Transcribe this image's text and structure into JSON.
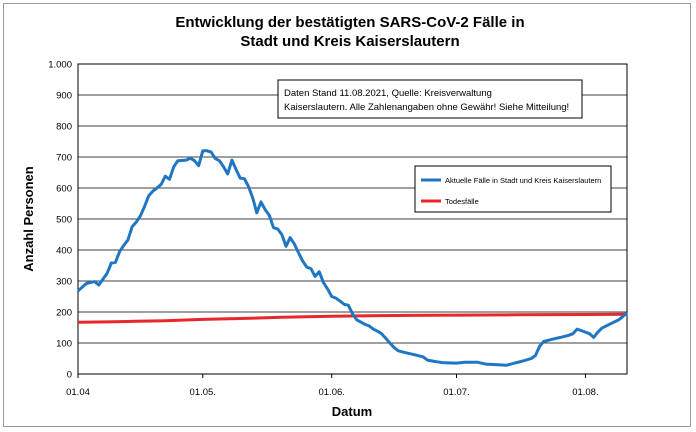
{
  "chart_data": {
    "type": "line",
    "title_lines": [
      "Entwicklung der bestätigten SARS-CoV-2 Fälle in",
      "Stadt und Kreis Kaiserslautern"
    ],
    "xlabel": "Datum",
    "ylabel": "Anzahl Personen",
    "ylim": [
      0,
      1000
    ],
    "yticks": [
      {
        "value": 0,
        "label": "0"
      },
      {
        "value": 100,
        "label": "100"
      },
      {
        "value": 200,
        "label": "200"
      },
      {
        "value": 300,
        "label": "300"
      },
      {
        "value": 400,
        "label": "400"
      },
      {
        "value": 500,
        "label": "500"
      },
      {
        "value": 600,
        "label": "600"
      },
      {
        "value": 700,
        "label": "700"
      },
      {
        "value": 800,
        "label": "800"
      },
      {
        "value": 900,
        "label": "900"
      },
      {
        "value": 1000,
        "label": "1.000"
      }
    ],
    "xlim": [
      "2021-04-01",
      "2021-08-11"
    ],
    "xticks": [
      {
        "date": "2021-04-01",
        "label": "01.04"
      },
      {
        "date": "2021-05-01",
        "label": "01.05."
      },
      {
        "date": "2021-06-01",
        "label": "01.06."
      },
      {
        "date": "2021-07-01",
        "label": "01.07."
      },
      {
        "date": "2021-08-01",
        "label": "01.08."
      }
    ],
    "grid": "horizontal",
    "annotation_lines": [
      "Daten Stand 11.08.2021, Quelle: Kreisverwaltung",
      "Kaiserslautern. Alle Zahlenangaben ohne Gewähr! Siehe Mitteilung!"
    ],
    "legend": {
      "position": "right",
      "entries": [
        {
          "name": "Aktuelle Fälle in Stadt und Kreis Kaiserslautern",
          "color": "#1f77c4"
        },
        {
          "name": "Todesfälle",
          "color": "#e8262b"
        }
      ]
    },
    "series": [
      {
        "name": "Aktuelle Fälle in Stadt und Kreis Kaiserslautern",
        "color": "#1f77c4",
        "points": [
          [
            "2021-04-01",
            268
          ],
          [
            "2021-04-03",
            292
          ],
          [
            "2021-04-05",
            298
          ],
          [
            "2021-04-06",
            287
          ],
          [
            "2021-04-08",
            325
          ],
          [
            "2021-04-09",
            358
          ],
          [
            "2021-04-10",
            360
          ],
          [
            "2021-04-11",
            395
          ],
          [
            "2021-04-12",
            415
          ],
          [
            "2021-04-13",
            432
          ],
          [
            "2021-04-14",
            475
          ],
          [
            "2021-04-15",
            490
          ],
          [
            "2021-04-16",
            510
          ],
          [
            "2021-04-17",
            540
          ],
          [
            "2021-04-18",
            575
          ],
          [
            "2021-04-19",
            590
          ],
          [
            "2021-04-20",
            600
          ],
          [
            "2021-04-21",
            612
          ],
          [
            "2021-04-22",
            638
          ],
          [
            "2021-04-23",
            628
          ],
          [
            "2021-04-24",
            668
          ],
          [
            "2021-04-25",
            688
          ],
          [
            "2021-04-27",
            690
          ],
          [
            "2021-04-28",
            696
          ],
          [
            "2021-04-29",
            688
          ],
          [
            "2021-04-30",
            672
          ],
          [
            "2021-05-01",
            720
          ],
          [
            "2021-05-02",
            720
          ],
          [
            "2021-05-03",
            716
          ],
          [
            "2021-05-04",
            695
          ],
          [
            "2021-05-05",
            688
          ],
          [
            "2021-05-06",
            668
          ],
          [
            "2021-05-07",
            645
          ],
          [
            "2021-05-08",
            690
          ],
          [
            "2021-05-09",
            660
          ],
          [
            "2021-05-10",
            632
          ],
          [
            "2021-05-11",
            630
          ],
          [
            "2021-05-12",
            605
          ],
          [
            "2021-05-13",
            568
          ],
          [
            "2021-05-14",
            520
          ],
          [
            "2021-05-15",
            555
          ],
          [
            "2021-05-16",
            530
          ],
          [
            "2021-05-17",
            512
          ],
          [
            "2021-05-18",
            472
          ],
          [
            "2021-05-19",
            468
          ],
          [
            "2021-05-20",
            450
          ],
          [
            "2021-05-21",
            412
          ],
          [
            "2021-05-22",
            440
          ],
          [
            "2021-05-23",
            420
          ],
          [
            "2021-05-24",
            392
          ],
          [
            "2021-05-25",
            365
          ],
          [
            "2021-05-26",
            345
          ],
          [
            "2021-05-27",
            340
          ],
          [
            "2021-05-28",
            315
          ],
          [
            "2021-05-29",
            330
          ],
          [
            "2021-05-30",
            295
          ],
          [
            "2021-05-31",
            275
          ],
          [
            "2021-06-01",
            250
          ],
          [
            "2021-06-02",
            245
          ],
          [
            "2021-06-03",
            235
          ],
          [
            "2021-06-04",
            225
          ],
          [
            "2021-06-05",
            222
          ],
          [
            "2021-06-06",
            195
          ],
          [
            "2021-06-07",
            175
          ],
          [
            "2021-06-09",
            160
          ],
          [
            "2021-06-10",
            155
          ],
          [
            "2021-06-11",
            145
          ],
          [
            "2021-06-12",
            138
          ],
          [
            "2021-06-13",
            130
          ],
          [
            "2021-06-14",
            115
          ],
          [
            "2021-06-15",
            100
          ],
          [
            "2021-06-16",
            85
          ],
          [
            "2021-06-17",
            75
          ],
          [
            "2021-06-19",
            68
          ],
          [
            "2021-06-21",
            62
          ],
          [
            "2021-06-23",
            55
          ],
          [
            "2021-06-24",
            45
          ],
          [
            "2021-06-26",
            40
          ],
          [
            "2021-06-28",
            36
          ],
          [
            "2021-07-01",
            35
          ],
          [
            "2021-07-03",
            38
          ],
          [
            "2021-07-06",
            38
          ],
          [
            "2021-07-08",
            32
          ],
          [
            "2021-07-11",
            30
          ],
          [
            "2021-07-13",
            28
          ],
          [
            "2021-07-15",
            35
          ],
          [
            "2021-07-17",
            42
          ],
          [
            "2021-07-19",
            50
          ],
          [
            "2021-07-20",
            60
          ],
          [
            "2021-07-21",
            90
          ],
          [
            "2021-07-22",
            105
          ],
          [
            "2021-07-24",
            112
          ],
          [
            "2021-07-26",
            118
          ],
          [
            "2021-07-28",
            125
          ],
          [
            "2021-07-29",
            130
          ],
          [
            "2021-07-30",
            145
          ],
          [
            "2021-08-01",
            135
          ],
          [
            "2021-08-02",
            130
          ],
          [
            "2021-08-03",
            118
          ],
          [
            "2021-08-04",
            135
          ],
          [
            "2021-08-05",
            148
          ],
          [
            "2021-08-06",
            155
          ],
          [
            "2021-08-07",
            162
          ],
          [
            "2021-08-08",
            168
          ],
          [
            "2021-08-09",
            175
          ],
          [
            "2021-08-10",
            185
          ],
          [
            "2021-08-11",
            198
          ]
        ]
      },
      {
        "name": "Todesfälle",
        "color": "#e8262b",
        "points": [
          [
            "2021-04-01",
            167
          ],
          [
            "2021-04-08",
            168
          ],
          [
            "2021-04-15",
            170
          ],
          [
            "2021-04-22",
            172
          ],
          [
            "2021-05-01",
            176
          ],
          [
            "2021-05-10",
            179
          ],
          [
            "2021-05-20",
            183
          ],
          [
            "2021-06-01",
            186
          ],
          [
            "2021-06-10",
            188
          ],
          [
            "2021-06-20",
            189
          ],
          [
            "2021-07-01",
            190
          ],
          [
            "2021-07-15",
            191
          ],
          [
            "2021-08-01",
            192
          ],
          [
            "2021-08-11",
            193
          ]
        ]
      }
    ]
  }
}
